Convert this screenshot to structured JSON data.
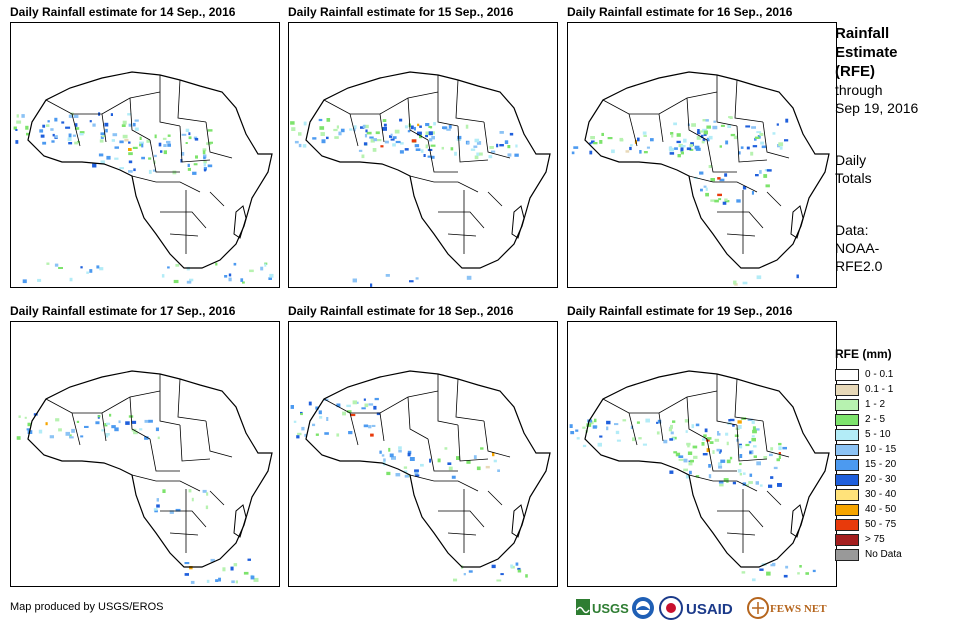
{
  "panels": [
    {
      "title": "Daily Rainfall estimate for 14 Sep., 2016",
      "day": "14"
    },
    {
      "title": "Daily Rainfall estimate for 15 Sep., 2016",
      "day": "15"
    },
    {
      "title": "Daily Rainfall estimate for 16 Sep., 2016",
      "day": "16"
    },
    {
      "title": "Daily Rainfall estimate for 17 Sep., 2016",
      "day": "17"
    },
    {
      "title": "Daily Rainfall estimate for 18 Sep., 2016",
      "day": "18"
    },
    {
      "title": "Daily Rainfall estimate for 19 Sep., 2016",
      "day": "19"
    }
  ],
  "side": {
    "title_lines": [
      "Rainfall",
      "Estimate",
      "(RFE)"
    ],
    "through": "through",
    "through_date": "Sep 19, 2016",
    "totals_1": "Daily",
    "totals_2": "Totals",
    "data_1": "Data:",
    "data_2": "NOAA-",
    "data_3": "RFE2.0"
  },
  "legend": {
    "title": "RFE (mm)",
    "items": [
      {
        "label": "0 - 0.1",
        "color": "#ffffff"
      },
      {
        "label": "0.1 - 1",
        "color": "#e8d9b8"
      },
      {
        "label": "1 - 2",
        "color": "#b7f2b0"
      },
      {
        "label": "2 - 5",
        "color": "#7de36c"
      },
      {
        "label": "5 - 10",
        "color": "#b3ecf7"
      },
      {
        "label": "10 - 15",
        "color": "#8cc3f5"
      },
      {
        "label": "15 - 20",
        "color": "#4c9af0"
      },
      {
        "label": "20 - 30",
        "color": "#1f5fdc"
      },
      {
        "label": "30 - 40",
        "color": "#ffe27a"
      },
      {
        "label": "40 - 50",
        "color": "#f6a500"
      },
      {
        "label": "50 - 75",
        "color": "#e83a0b"
      },
      {
        "label": "> 75",
        "color": "#a51f1f"
      },
      {
        "label": "No Data",
        "color": "#999999"
      }
    ]
  },
  "credit": "Map produced by USGS/EROS",
  "logos": {
    "usgs": "USGS",
    "usaid": "USAID",
    "fews": "FEWS NET"
  }
}
